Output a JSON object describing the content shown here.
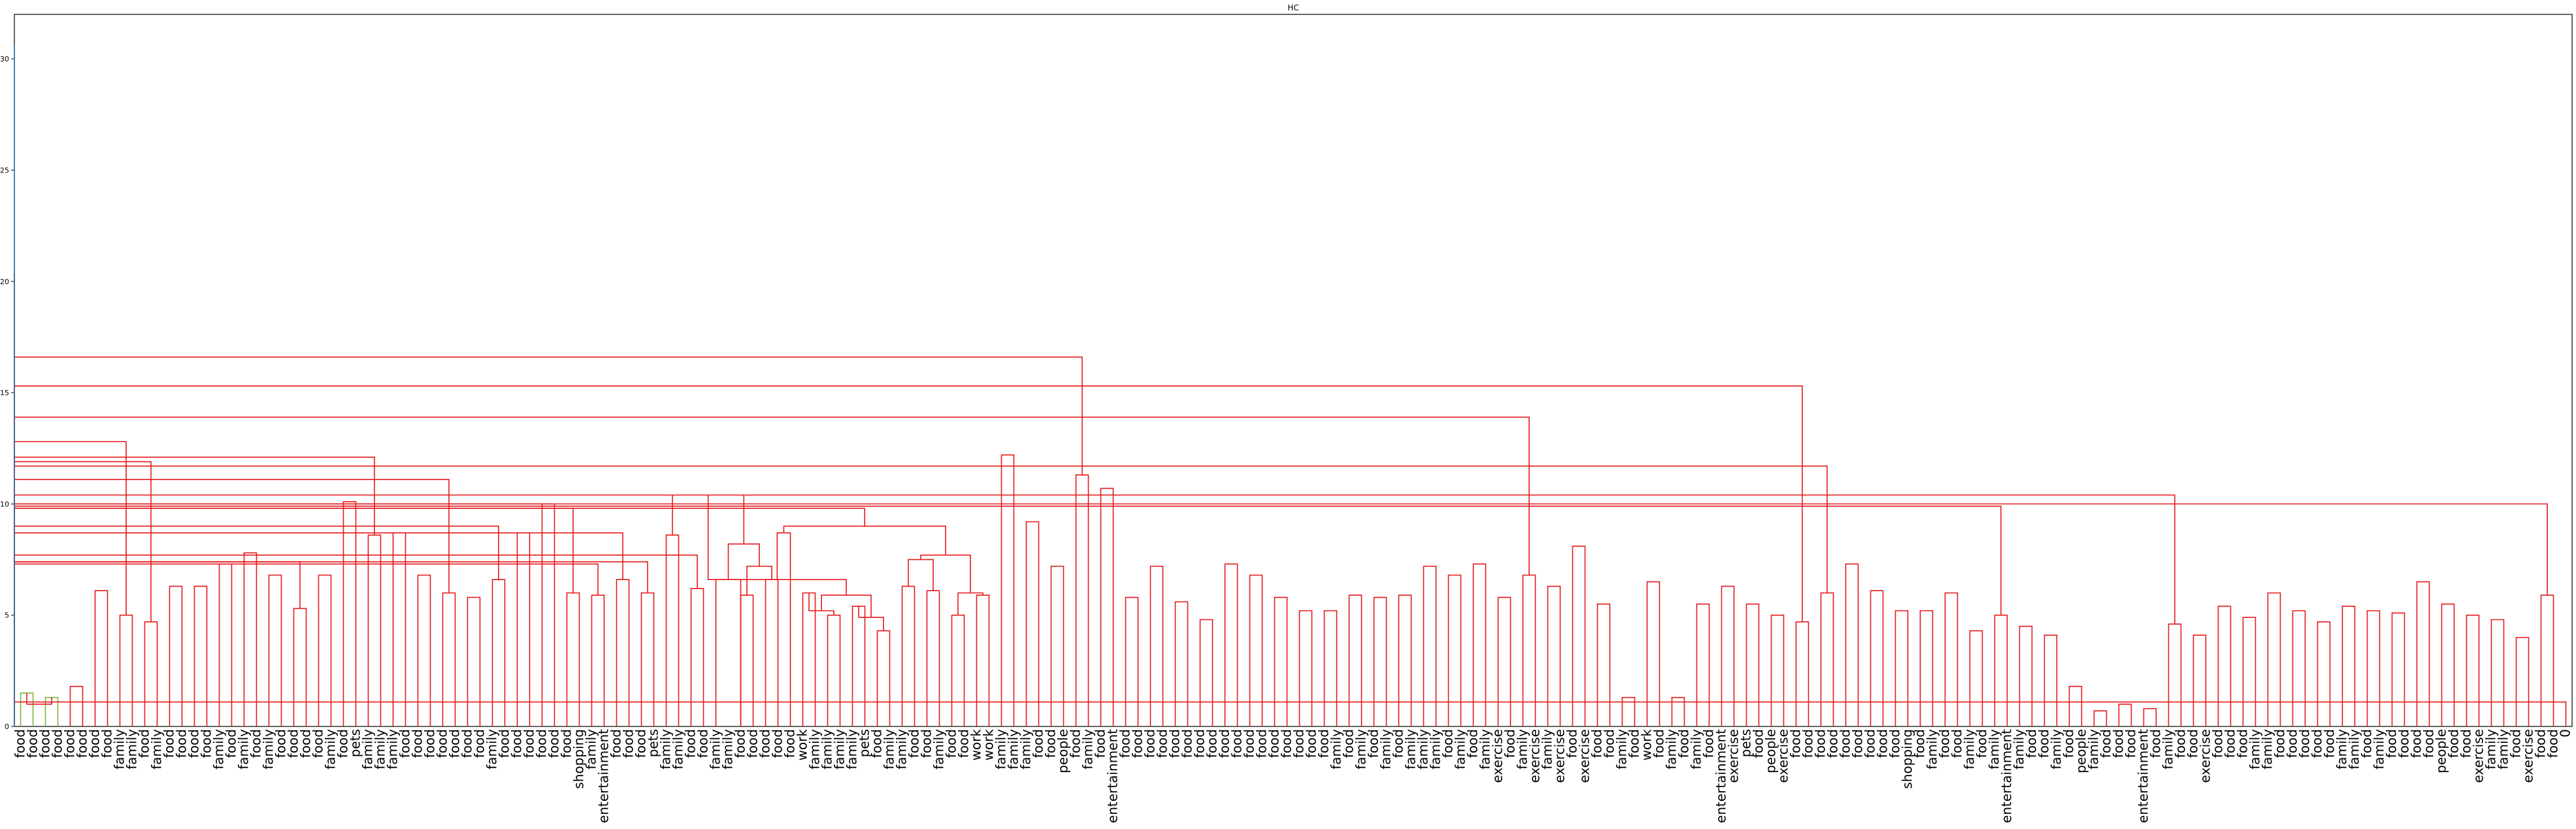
{
  "chart_data": {
    "type": "dendrogram",
    "title": "HC",
    "ylim": [
      0,
      32
    ],
    "y_ticks": [
      0,
      5,
      10,
      15,
      20,
      25,
      30
    ],
    "grid": false,
    "colors": {
      "root": "#1f77b4",
      "cluster_small": "#7cb342",
      "cluster_main": "#e41a1c"
    },
    "leaf_labels": [
      "food",
      "food",
      "food",
      "food",
      "food",
      "food",
      "food",
      "food",
      "family",
      "family",
      "food",
      "family",
      "food",
      "food",
      "food",
      "food",
      "family",
      "food",
      "family",
      "food",
      "family",
      "food",
      "food",
      "food",
      "food",
      "family",
      "food",
      "pets",
      "family",
      "family",
      "family",
      "food",
      "food",
      "food",
      "food",
      "food",
      "food",
      "food",
      "family",
      "food",
      "food",
      "food",
      "food",
      "food",
      "food",
      "shopping",
      "family",
      "entertainment",
      "food",
      "food",
      "food",
      "pets",
      "family",
      "family",
      "food",
      "food",
      "family",
      "family",
      "food",
      "food",
      "food",
      "food",
      "food",
      "work",
      "family",
      "family",
      "family",
      "family",
      "pets",
      "food",
      "family",
      "family",
      "food",
      "food",
      "family",
      "food",
      "food",
      "work",
      "work",
      "family",
      "family",
      "family",
      "food",
      "food",
      "people",
      "food",
      "family",
      "food",
      "entertainment",
      "food",
      "food",
      "food",
      "food",
      "food",
      "food",
      "food",
      "food",
      "food",
      "food",
      "food",
      "food",
      "food",
      "food",
      "food",
      "food",
      "food",
      "family",
      "food",
      "family",
      "food",
      "family",
      "food",
      "family",
      "family",
      "family",
      "food",
      "family",
      "food",
      "family",
      "exercise",
      "food",
      "family",
      "exercise",
      "family",
      "exercise",
      "food",
      "exercise",
      "food",
      "food",
      "family",
      "food",
      "work",
      "food",
      "family",
      "food",
      "family",
      "food",
      "entertainment",
      "exercise",
      "pets",
      "food",
      "people",
      "exercise",
      "food",
      "food",
      "food",
      "food",
      "food",
      "food",
      "food",
      "food",
      "food",
      "shopping",
      "food",
      "family",
      "food",
      "food",
      "family",
      "food",
      "family",
      "entertainment",
      "family",
      "food",
      "food",
      "family",
      "food",
      "people",
      "family",
      "food",
      "food",
      "food",
      "entertainment",
      "food",
      "family",
      "food",
      "food",
      "exercise",
      "food",
      "food",
      "food",
      "family",
      "family",
      "food",
      "food",
      "food",
      "food",
      "food",
      "family",
      "family",
      "food",
      "family",
      "food",
      "food",
      "food",
      "food",
      "people",
      "food",
      "food",
      "exercise",
      "family",
      "family",
      "food",
      "exercise",
      "food",
      "food",
      "0"
    ],
    "heights": [
      1.8,
      1.5,
      1.3,
      1.1,
      2.0,
      1.6,
      6.1,
      5.8,
      6.6,
      7.4,
      7.0,
      6.7,
      5.0,
      4.7,
      7.5,
      6.2,
      8.3,
      7.7,
      9.1,
      7.8,
      7.6,
      7.0,
      6.8,
      9.7,
      8.0,
      6.8,
      9.4,
      8.4,
      7.4,
      6.3,
      5.3,
      10.0,
      8.7,
      11.0,
      9.2,
      8.6,
      8.1,
      6.8,
      6.0,
      7.4,
      6.6,
      5.8,
      10.0,
      8.0,
      9.2,
      6.6,
      8.7,
      5.8,
      6.5,
      6.0,
      9.8,
      7.1,
      6.0,
      5.9,
      8.6,
      6.6,
      6.3,
      6.0,
      6.6,
      11.9,
      8.4,
      7.6,
      6.2,
      5.9,
      10.3,
      9.5,
      8.0,
      7.0,
      5.3,
      5.0,
      7.3,
      6.4,
      5.9,
      8.6,
      6.0,
      5.2,
      5.0,
      7.1,
      6.4,
      5.7,
      5.3,
      4.2,
      9.4,
      7.4,
      6.4,
      6.0,
      5.6,
      5.3,
      5.0,
      7.6,
      6.0,
      12.2,
      9.2,
      7.2,
      11.3,
      10.7,
      8.4,
      5.7,
      7.2,
      6.7,
      5.8,
      5.5,
      4.8,
      7.3,
      7.0,
      6.8,
      6.3,
      5.8,
      5.2,
      8.5,
      8.0,
      7.1,
      6.0,
      5.9,
      5.2,
      10.9,
      9.6,
      8.0,
      7.2,
      6.8,
      5.8,
      9.1,
      7.3,
      8.6,
      8.1,
      6.3,
      5.8,
      5.6,
      10.5,
      1.3,
      6.5,
      1.3,
      8.0,
      7.0,
      6.3,
      5.5,
      4.7,
      7.3,
      6.6,
      6.0,
      5.5,
      11.7,
      8.0,
      6.6,
      5.7,
      5.0,
      7.6,
      6.0,
      7.3,
      6.8,
      6.1,
      5.2,
      8.9,
      7.2,
      6.4,
      5.2,
      6.0,
      5.3,
      4.3,
      5.0,
      4.5,
      4.1,
      6.0,
      4.3,
      1.8,
      0.7,
      3.4,
      1.0,
      0.8,
      5.4,
      4.6,
      4.1,
      8.0,
      7.0,
      6.6,
      5.7,
      5.4,
      4.9,
      6.0,
      5.2,
      4.7,
      6.7,
      5.4,
      5.1,
      5.2,
      7.1,
      6.5,
      5.8,
      5.5,
      5.0,
      4.8,
      6.8,
      6.2,
      5.9,
      5.5,
      4.0,
      9.4,
      7.3,
      5.7,
      6.9,
      6.8,
      5.0,
      6.4,
      6.2,
      5.5,
      5.2,
      7.4,
      6.0,
      5.4,
      5.0,
      10.4,
      8.2,
      7.3,
      6.3,
      5.2,
      1.1,
      1.0,
      8.5,
      8.1,
      7.2,
      6.5,
      5.9,
      5.1,
      4.5
    ],
    "merges": [
      [
        0,
        1,
        1.5
      ],
      [
        2,
        3,
        1.3
      ],
      [
        209,
        210,
        1.8
      ],
      [
        4,
        5,
        1.8
      ],
      [
        6,
        7,
        6.1
      ],
      [
        8,
        9,
        5.0
      ],
      [
        10,
        11,
        4.7
      ],
      [
        213,
        214,
        7.0
      ],
      [
        12,
        13,
        6.3
      ],
      [
        215,
        216,
        7.6
      ],
      [
        217,
        218,
        8.6
      ],
      [
        14,
        15,
        6.3
      ],
      [
        219,
        220,
        11.0
      ],
      [
        16,
        17,
        7.3
      ],
      [
        18,
        19,
        7.8
      ],
      [
        221,
        222,
        9.2
      ],
      [
        20,
        21,
        6.8
      ],
      [
        22,
        23,
        5.3
      ],
      [
        223,
        224,
        7.4
      ],
      [
        225,
        226,
        9.8
      ],
      [
        24,
        25,
        6.8
      ],
      [
        227,
        228,
        8.0
      ],
      [
        26,
        27,
        10.1
      ],
      [
        28,
        29,
        8.6
      ],
      [
        230,
        231,
        9.2
      ],
      [
        32,
        33,
        6.8
      ],
      [
        34,
        35,
        6.0
      ],
      [
        233,
        234,
        8.1
      ],
      [
        36,
        37,
        5.8
      ],
      [
        38,
        39,
        6.6
      ],
      [
        236,
        237,
        8.0
      ],
      [
        238,
        235,
        9.0
      ],
      [
        30,
        31,
        8.7
      ],
      [
        239,
        240,
        10.0
      ],
      [
        232,
        241,
        11.1
      ],
      [
        242,
        229,
        12.1
      ],
      [
        40,
        41,
        8.7
      ],
      [
        42,
        43,
        10.0
      ],
      [
        44,
        45,
        6.0
      ],
      [
        46,
        47,
        5.9
      ],
      [
        245,
        246,
        7.3
      ],
      [
        48,
        49,
        6.6
      ],
      [
        50,
        51,
        6.0
      ],
      [
        248,
        249,
        7.4
      ],
      [
        247,
        250,
        8.7
      ],
      [
        244,
        251,
        9.8
      ],
      [
        243,
        252,
        10.0
      ],
      [
        253,
        212,
        11.9
      ],
      [
        254,
        211,
        12.8
      ],
      [
        52,
        53,
        8.6
      ],
      [
        54,
        55,
        6.2
      ],
      [
        256,
        257,
        7.7
      ],
      [
        56,
        58,
        6.6
      ],
      [
        58,
        59,
        5.9
      ],
      [
        60,
        61,
        6.6
      ],
      [
        259,
        260,
        7.2
      ],
      [
        261,
        258,
        8.2
      ],
      [
        262,
        255,
        10.4
      ],
      [
        63,
        64,
        6.0
      ],
      [
        65,
        66,
        5.0
      ],
      [
        264,
        265,
        5.2
      ],
      [
        67,
        68,
        5.4
      ],
      [
        69,
        70,
        4.3
      ],
      [
        267,
        268,
        4.9
      ],
      [
        266,
        269,
        5.9
      ],
      [
        270,
        263,
        6.6
      ],
      [
        271,
        62,
        8.7
      ],
      [
        71,
        72,
        6.3
      ],
      [
        73,
        74,
        6.1
      ],
      [
        273,
        274,
        7.5
      ],
      [
        75,
        76,
        5.0
      ],
      [
        77,
        78,
        5.9
      ],
      [
        276,
        277,
        6.0
      ],
      [
        275,
        278,
        7.7
      ],
      [
        279,
        272,
        9.0
      ],
      [
        280,
        281,
        9.8
      ],
      [
        282,
        283,
        10.4
      ],
      [
        284,
        285,
        12.6
      ],
      [
        286,
        287,
        12.8
      ],
      [
        288,
        289,
        14.1
      ],
      [
        79,
        80,
        12.2
      ],
      [
        81,
        82,
        9.2
      ],
      [
        83,
        84,
        7.2
      ],
      [
        292,
        293,
        8.9
      ],
      [
        85,
        86,
        11.3
      ],
      [
        87,
        88,
        10.7
      ],
      [
        295,
        296,
        11.3
      ],
      [
        294,
        297,
        12.2
      ],
      [
        298,
        299,
        12.2
      ],
      [
        89,
        90,
        5.8
      ],
      [
        91,
        92,
        7.2
      ],
      [
        301,
        302,
        7.5
      ],
      [
        93,
        94,
        5.6
      ],
      [
        95,
        96,
        4.8
      ],
      [
        304,
        305,
        5.5
      ],
      [
        303,
        306,
        8.4
      ],
      [
        97,
        98,
        7.3
      ],
      [
        99,
        100,
        6.8
      ],
      [
        308,
        309,
        7.1
      ],
      [
        101,
        102,
        5.8
      ],
      [
        103,
        104,
        5.2
      ],
      [
        311,
        312,
        6.3
      ],
      [
        310,
        313,
        6.8
      ],
      [
        314,
        307,
        8.5
      ],
      [
        105,
        106,
        5.2
      ],
      [
        107,
        108,
        5.9
      ],
      [
        316,
        317,
        7.3
      ],
      [
        109,
        110,
        5.8
      ],
      [
        111,
        112,
        5.9
      ],
      [
        319,
        320,
        6.0
      ],
      [
        318,
        321,
        8.0
      ],
      [
        322,
        315,
        8.6
      ],
      [
        323,
        324,
        10.2
      ],
      [
        325,
        300,
        12.2
      ],
      [
        326,
        327,
        13.9
      ],
      [
        113,
        114,
        7.2
      ],
      [
        115,
        116,
        6.8
      ],
      [
        329,
        330,
        7.9
      ],
      [
        117,
        118,
        7.3
      ],
      [
        119,
        120,
        5.8
      ],
      [
        332,
        333,
        7.3
      ],
      [
        331,
        334,
        8.6
      ],
      [
        121,
        122,
        6.8
      ],
      [
        123,
        124,
        6.3
      ],
      [
        336,
        337,
        7.0
      ],
      [
        125,
        126,
        8.1
      ],
      [
        127,
        128,
        5.5
      ],
      [
        339,
        340,
        6.3
      ],
      [
        338,
        341,
        8.2
      ],
      [
        342,
        335,
        9.1
      ],
      [
        343,
        344,
        9.6
      ],
      [
        345,
        346,
        10.9
      ],
      [
        347,
        348,
        12.3
      ],
      [
        349,
        328,
        13.9
      ],
      [
        350,
        351,
        15.3
      ],
      [
        129,
        130,
        1.3
      ],
      [
        131,
        132,
        6.5
      ],
      [
        353,
        354,
        10.5
      ],
      [
        133,
        134,
        1.3
      ],
      [
        135,
        136,
        5.5
      ],
      [
        356,
        357,
        7.0
      ],
      [
        137,
        138,
        6.3
      ],
      [
        139,
        140,
        5.5
      ],
      [
        359,
        360,
        7.2
      ],
      [
        358,
        361,
        8.0
      ],
      [
        141,
        142,
        5.0
      ],
      [
        143,
        144,
        4.7
      ],
      [
        363,
        364,
        5.7
      ],
      [
        365,
        362,
        8.0
      ],
      [
        145,
        146,
        6.0
      ],
      [
        147,
        148,
        7.3
      ],
      [
        367,
        368,
        7.6
      ],
      [
        149,
        150,
        6.1
      ],
      [
        151,
        152,
        5.2
      ],
      [
        370,
        371,
        6.8
      ],
      [
        369,
        372,
        7.9
      ],
      [
        153,
        154,
        5.2
      ],
      [
        155,
        156,
        6.0
      ],
      [
        374,
        375,
        6.4
      ],
      [
        157,
        158,
        4.3
      ],
      [
        159,
        160,
        5.0
      ],
      [
        377,
        378,
        5.3
      ],
      [
        376,
        379,
        7.0
      ],
      [
        373,
        380,
        8.9
      ],
      [
        381,
        366,
        9.9
      ],
      [
        161,
        162,
        4.5
      ],
      [
        163,
        164,
        4.1
      ],
      [
        383,
        384,
        5.0
      ],
      [
        165,
        166,
        1.8
      ],
      [
        167,
        168,
        0.7
      ],
      [
        386,
        387,
        4.3
      ],
      [
        169,
        170,
        1.0
      ],
      [
        171,
        172,
        0.8
      ],
      [
        389,
        390,
        3.4
      ],
      [
        388,
        391,
        6.0
      ],
      [
        385,
        392,
        6.0
      ],
      [
        173,
        174,
        4.6
      ],
      [
        175,
        176,
        4.1
      ],
      [
        394,
        395,
        5.4
      ],
      [
        177,
        178,
        5.4
      ],
      [
        179,
        180,
        4.9
      ],
      [
        397,
        398,
        5.7
      ],
      [
        396,
        399,
        7.0
      ],
      [
        393,
        400,
        7.4
      ],
      [
        181,
        182,
        6.0
      ],
      [
        183,
        184,
        5.2
      ],
      [
        402,
        403,
        6.7
      ],
      [
        185,
        186,
        4.7
      ],
      [
        187,
        188,
        5.4
      ],
      [
        405,
        406,
        6.6
      ],
      [
        404,
        407,
        8.0
      ],
      [
        401,
        408,
        9.0
      ],
      [
        189,
        190,
        5.2
      ],
      [
        191,
        192,
        5.1
      ],
      [
        410,
        411,
        5.8
      ],
      [
        193,
        194,
        6.5
      ],
      [
        195,
        196,
        5.5
      ],
      [
        413,
        414,
        7.1
      ],
      [
        412,
        415,
        7.5
      ],
      [
        197,
        198,
        5.0
      ],
      [
        199,
        200,
        4.8
      ],
      [
        417,
        418,
        5.5
      ],
      [
        201,
        202,
        4.0
      ],
      [
        203,
        204,
        5.9
      ],
      [
        420,
        421,
        6.2
      ],
      [
        419,
        422,
        7.3
      ],
      [
        416,
        423,
        8.2
      ],
      [
        424,
        409,
        10.0
      ],
      [
        425,
        382,
        10.4
      ],
      [
        426,
        427,
        11.3
      ],
      [
        428,
        355,
        11.7
      ],
      [
        429,
        430,
        14.6
      ],
      [
        352,
        431,
        15.3
      ],
      [
        432,
        290,
        16.6
      ],
      [
        208,
        433,
        20.4
      ],
      [
        206,
        207,
        1.0
      ],
      [
        205,
        435,
        1.1
      ],
      [
        434,
        436,
        30.6
      ]
    ]
  }
}
